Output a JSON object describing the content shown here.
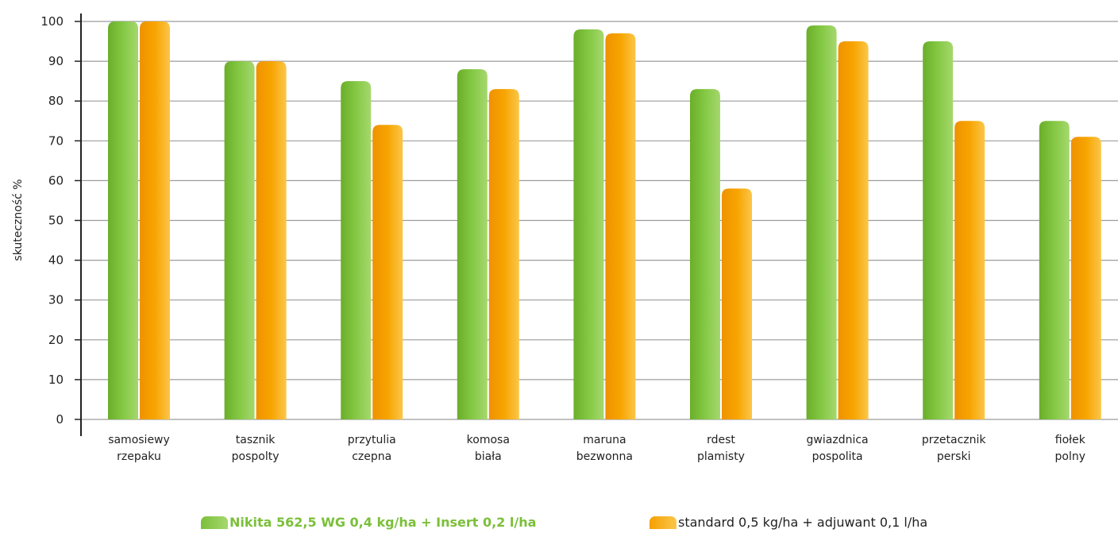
{
  "chart_data": {
    "type": "bar",
    "title": "",
    "xlabel": "",
    "ylabel": "skuteczność %",
    "ylim": [
      0,
      100
    ],
    "yticks": [
      0,
      10,
      20,
      30,
      40,
      50,
      60,
      70,
      80,
      90,
      100
    ],
    "grid": true,
    "legend_position": "bottom",
    "categories": [
      [
        "samosiewy",
        "rzepaku"
      ],
      [
        "tasznik",
        "pospolty"
      ],
      [
        "przytulia",
        "czepna"
      ],
      [
        "komosa",
        "biała"
      ],
      [
        "maruna",
        "bezwonna"
      ],
      [
        "rdest",
        "plamisty"
      ],
      [
        "gwiazdnica",
        "pospolita"
      ],
      [
        "przetacznik",
        "perski"
      ],
      [
        "fiołek",
        "polny"
      ]
    ],
    "series": [
      {
        "name": "Nikita 562,5 WG 0,4 kg/ha + Insert 0,2 l/ha",
        "color": "#7bbf3a",
        "label_color": "#7bbf3a",
        "values": [
          100,
          90,
          85,
          88,
          98,
          83,
          99,
          95,
          75
        ]
      },
      {
        "name": "standard 0,5 kg/ha + adjuwant 0,1 l/ha",
        "color": "#f5a000",
        "label_color": "#222222",
        "values": [
          100,
          90,
          74,
          83,
          97,
          58,
          95,
          75,
          71
        ]
      }
    ]
  }
}
